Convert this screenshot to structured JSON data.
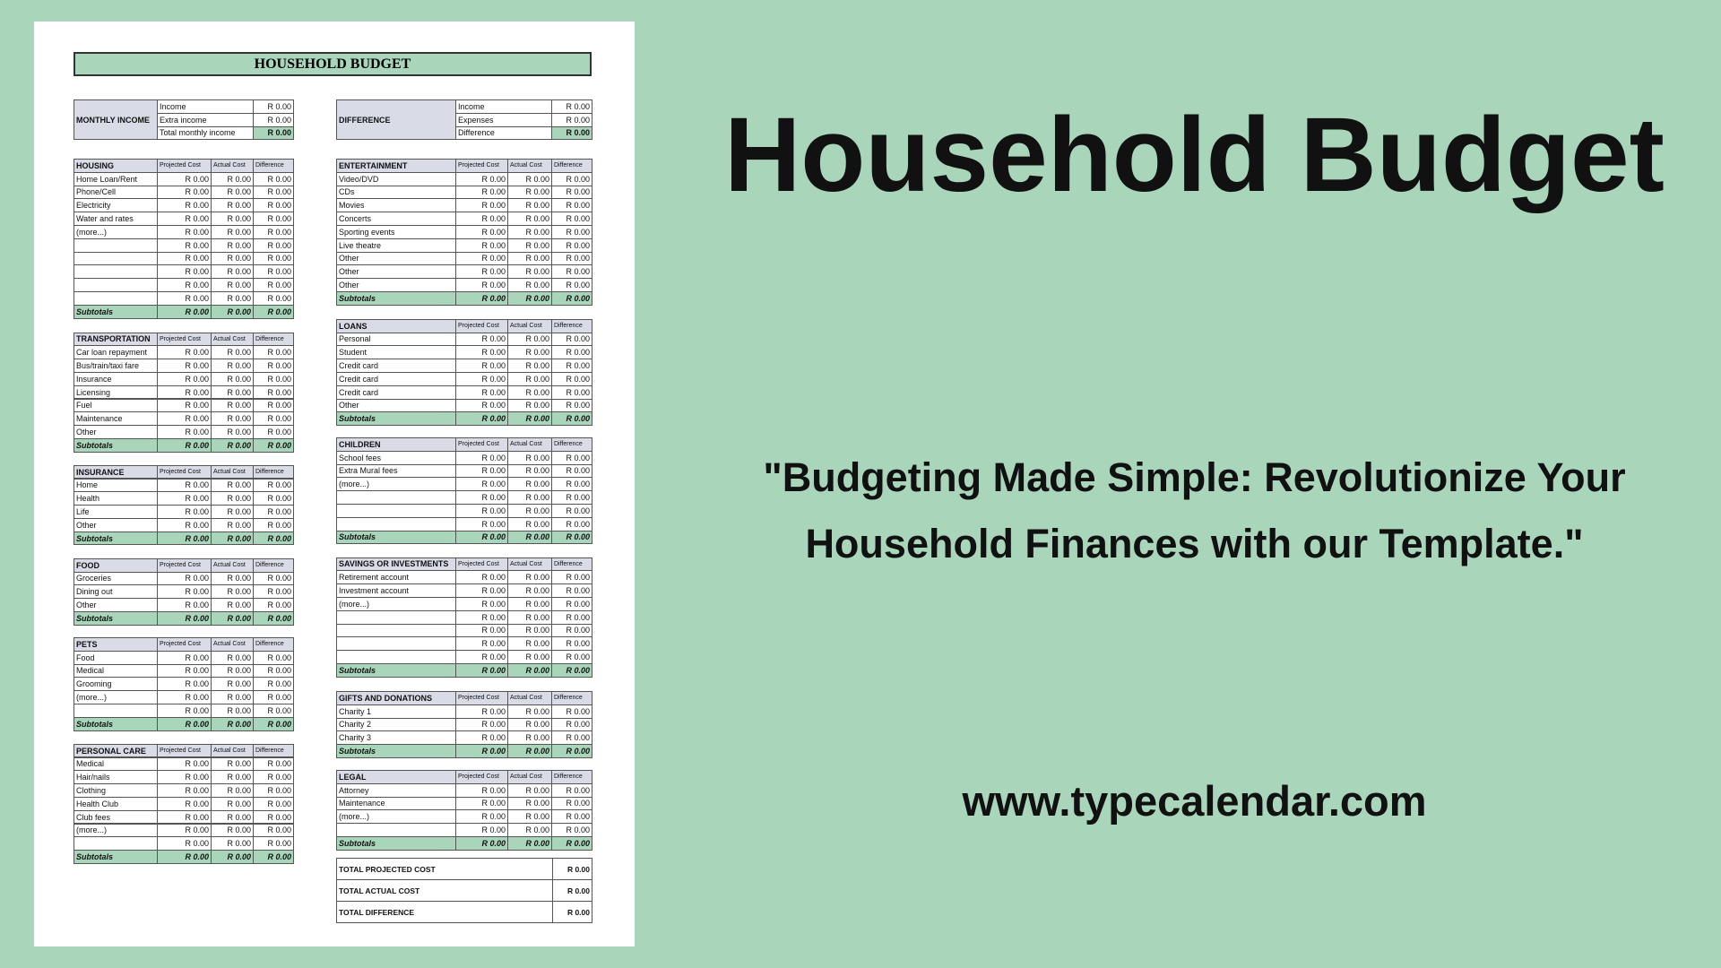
{
  "header": {
    "title": "Household Budget",
    "tagline": "\"Budgeting Made Simple: Revolutionize Your Household Finances with our Template.\"",
    "url": "www.typecalendar.com"
  },
  "document": {
    "title": "HOUSEHOLD BUDGET",
    "income": {
      "label": "MONTHLY INCOME",
      "rows": [
        [
          "Income",
          "R 0.00"
        ],
        [
          "Extra income",
          "R 0.00"
        ],
        [
          "Total monthly income",
          "R 0.00"
        ]
      ]
    },
    "difference": {
      "label": "DIFFERENCE",
      "rows": [
        [
          "Income",
          "R 0.00"
        ],
        [
          "Expenses",
          "R 0.00"
        ],
        [
          "Difference",
          "R 0.00"
        ]
      ]
    },
    "sections": [
      {
        "title": "HOUSING",
        "columns": [
          "Projected Cost",
          "Actual Cost",
          "Difference"
        ],
        "rows": [
          [
            "Home Loan/Rent",
            "R 0.00",
            "R 0.00",
            "R 0.00"
          ],
          [
            "Phone/Cell",
            "R 0.00",
            "R 0.00",
            "R 0.00"
          ],
          [
            "Electricity",
            "R 0.00",
            "R 0.00",
            "R 0.00"
          ],
          [
            "Water and rates",
            "R 0.00",
            "R 0.00",
            "R 0.00"
          ],
          [
            "(more...)",
            "R 0.00",
            "R 0.00",
            "R 0.00"
          ],
          [
            null,
            "R 0.00",
            "R 0.00",
            "R 0.00"
          ],
          [
            null,
            "R 0.00",
            "R 0.00",
            "R 0.00"
          ],
          [
            null,
            "R 0.00",
            "R 0.00",
            "R 0.00"
          ],
          [
            null,
            "R 0.00",
            "R 0.00",
            "R 0.00"
          ],
          [
            null,
            "R 0.00",
            "R 0.00",
            "R 0.00"
          ]
        ],
        "subtotal": [
          "Subtotals",
          "R 0.00",
          "R 0.00",
          "R 0.00"
        ]
      },
      {
        "title": "TRANSPORTATION",
        "columns": [
          "Projected Cost",
          "Actual Cost",
          "Difference"
        ],
        "rows": [
          [
            "Car loan repayment",
            "R 0.00",
            "R 0.00",
            "R 0.00"
          ],
          [
            "Bus/train/taxi fare",
            "R 0.00",
            "R 0.00",
            "R 0.00"
          ],
          [
            "Insurance",
            "R 0.00",
            "R 0.00",
            "R 0.00"
          ],
          [
            "Licensing",
            "R 0.00",
            "R 0.00",
            "R 0.00"
          ],
          [
            "Fuel",
            "R 0.00",
            "R 0.00",
            "R 0.00"
          ],
          [
            "Maintenance",
            "R 0.00",
            "R 0.00",
            "R 0.00"
          ],
          [
            "Other",
            "R 0.00",
            "R 0.00",
            "R 0.00"
          ]
        ],
        "subtotal": [
          "Subtotals",
          "R 0.00",
          "R 0.00",
          "R 0.00"
        ]
      },
      {
        "title": "INSURANCE",
        "columns": [
          "Projected Cost",
          "Actual Cost",
          "Difference"
        ],
        "rows": [
          [
            "Home",
            "R 0.00",
            "R 0.00",
            "R 0.00"
          ],
          [
            "Health",
            "R 0.00",
            "R 0.00",
            "R 0.00"
          ],
          [
            "Life",
            "R 0.00",
            "R 0.00",
            "R 0.00"
          ],
          [
            "Other",
            "R 0.00",
            "R 0.00",
            "R 0.00"
          ]
        ],
        "subtotal": [
          "Subtotals",
          "R 0.00",
          "R 0.00",
          "R 0.00"
        ]
      },
      {
        "title": "FOOD",
        "columns": [
          "Projected Cost",
          "Actual Cost",
          "Difference"
        ],
        "rows": [
          [
            "Groceries",
            "R 0.00",
            "R 0.00",
            "R 0.00"
          ],
          [
            "Dining out",
            "R 0.00",
            "R 0.00",
            "R 0.00"
          ],
          [
            "Other",
            "R 0.00",
            "R 0.00",
            "R 0.00"
          ]
        ],
        "subtotal": [
          "Subtotals",
          "R 0.00",
          "R 0.00",
          "R 0.00"
        ]
      },
      {
        "title": "PETS",
        "columns": [
          "Projected Cost",
          "Actual Cost",
          "Difference"
        ],
        "rows": [
          [
            "Food",
            "R 0.00",
            "R 0.00",
            "R 0.00"
          ],
          [
            "Medical",
            "R 0.00",
            "R 0.00",
            "R 0.00"
          ],
          [
            "Grooming",
            "R 0.00",
            "R 0.00",
            "R 0.00"
          ],
          [
            "(more...)",
            "R 0.00",
            "R 0.00",
            "R 0.00"
          ],
          [
            null,
            "R 0.00",
            "R 0.00",
            "R 0.00"
          ]
        ],
        "subtotal": [
          "Subtotals",
          "R 0.00",
          "R 0.00",
          "R 0.00"
        ]
      },
      {
        "title": "PERSONAL CARE",
        "columns": [
          "Projected Cost",
          "Actual Cost",
          "Difference"
        ],
        "rows": [
          [
            "Medical",
            "R 0.00",
            "R 0.00",
            "R 0.00"
          ],
          [
            "Hair/nails",
            "R 0.00",
            "R 0.00",
            "R 0.00"
          ],
          [
            "Clothing",
            "R 0.00",
            "R 0.00",
            "R 0.00"
          ],
          [
            "Health Club",
            "R 0.00",
            "R 0.00",
            "R 0.00"
          ],
          [
            "Club fees",
            "R 0.00",
            "R 0.00",
            "R 0.00"
          ],
          [
            "(more...)",
            "R 0.00",
            "R 0.00",
            "R 0.00"
          ],
          [
            null,
            "R 0.00",
            "R 0.00",
            "R 0.00"
          ]
        ],
        "subtotal": [
          "Subtotals",
          "R 0.00",
          "R 0.00",
          "R 0.00"
        ]
      },
      {
        "title": "ENTERTAINMENT",
        "columns": [
          "Projected Cost",
          "Actual Cost",
          "Difference"
        ],
        "rows": [
          [
            "Video/DVD",
            "R 0.00",
            "R 0.00",
            "R 0.00"
          ],
          [
            "CDs",
            "R 0.00",
            "R 0.00",
            "R 0.00"
          ],
          [
            "Movies",
            "R 0.00",
            "R 0.00",
            "R 0.00"
          ],
          [
            "Concerts",
            "R 0.00",
            "R 0.00",
            "R 0.00"
          ],
          [
            "Sporting events",
            "R 0.00",
            "R 0.00",
            "R 0.00"
          ],
          [
            "Live theatre",
            "R 0.00",
            "R 0.00",
            "R 0.00"
          ],
          [
            "Other",
            "R 0.00",
            "R 0.00",
            "R 0.00"
          ],
          [
            "Other",
            "R 0.00",
            "R 0.00",
            "R 0.00"
          ],
          [
            "Other",
            "R 0.00",
            "R 0.00",
            "R 0.00"
          ]
        ],
        "subtotal": [
          "Subtotals",
          "R 0.00",
          "R 0.00",
          "R 0.00"
        ]
      },
      {
        "title": "LOANS",
        "columns": [
          "Projected Cost",
          "Actual Cost",
          "Difference"
        ],
        "rows": [
          [
            "Personal",
            "R 0.00",
            "R 0.00",
            "R 0.00"
          ],
          [
            "Student",
            "R 0.00",
            "R 0.00",
            "R 0.00"
          ],
          [
            "Credit card",
            "R 0.00",
            "R 0.00",
            "R 0.00"
          ],
          [
            "Credit card",
            "R 0.00",
            "R 0.00",
            "R 0.00"
          ],
          [
            "Credit card",
            "R 0.00",
            "R 0.00",
            "R 0.00"
          ],
          [
            "Other",
            "R 0.00",
            "R 0.00",
            "R 0.00"
          ]
        ],
        "subtotal": [
          "Subtotals",
          "R 0.00",
          "R 0.00",
          "R 0.00"
        ]
      },
      {
        "title": "CHILDREN",
        "columns": [
          "Projected Cost",
          "Actual Cost",
          "Difference"
        ],
        "rows": [
          [
            "School fees",
            "R 0.00",
            "R 0.00",
            "R 0.00"
          ],
          [
            "Extra Mural fees",
            "R 0.00",
            "R 0.00",
            "R 0.00"
          ],
          [
            "(more...)",
            "R 0.00",
            "R 0.00",
            "R 0.00"
          ],
          [
            null,
            "R 0.00",
            "R 0.00",
            "R 0.00"
          ],
          [
            null,
            "R 0.00",
            "R 0.00",
            "R 0.00"
          ],
          [
            null,
            "R 0.00",
            "R 0.00",
            "R 0.00"
          ]
        ],
        "subtotal": [
          "Subtotals",
          "R 0.00",
          "R 0.00",
          "R 0.00"
        ]
      },
      {
        "title": "SAVINGS OR INVESTMENTS",
        "columns": [
          "Projected Cost",
          "Actual Cost",
          "Difference"
        ],
        "rows": [
          [
            "Retirement account",
            "R 0.00",
            "R 0.00",
            "R 0.00"
          ],
          [
            "Investment account",
            "R 0.00",
            "R 0.00",
            "R 0.00"
          ],
          [
            "(more...)",
            "R 0.00",
            "R 0.00",
            "R 0.00"
          ],
          [
            null,
            "R 0.00",
            "R 0.00",
            "R 0.00"
          ],
          [
            null,
            "R 0.00",
            "R 0.00",
            "R 0.00"
          ],
          [
            null,
            "R 0.00",
            "R 0.00",
            "R 0.00"
          ],
          [
            null,
            "R 0.00",
            "R 0.00",
            "R 0.00"
          ]
        ],
        "subtotal": [
          "Subtotals",
          "R 0.00",
          "R 0.00",
          "R 0.00"
        ]
      },
      {
        "title": "GIFTS AND DONATIONS",
        "columns": [
          "Projected Cost",
          "Actual Cost",
          "Difference"
        ],
        "rows": [
          [
            "Charity 1",
            "R 0.00",
            "R 0.00",
            "R 0.00"
          ],
          [
            "Charity 2",
            "R 0.00",
            "R 0.00",
            "R 0.00"
          ],
          [
            "Charity 3",
            "R 0.00",
            "R 0.00",
            "R 0.00"
          ]
        ],
        "subtotal": [
          "Subtotals",
          "R 0.00",
          "R 0.00",
          "R 0.00"
        ]
      },
      {
        "title": "LEGAL",
        "columns": [
          "Projected Cost",
          "Actual Cost",
          "Difference"
        ],
        "rows": [
          [
            "Attorney",
            "R 0.00",
            "R 0.00",
            "R 0.00"
          ],
          [
            "Maintenance",
            "R 0.00",
            "R 0.00",
            "R 0.00"
          ],
          [
            "(more...)",
            "R 0.00",
            "R 0.00",
            "R 0.00"
          ],
          [
            null,
            "R 0.00",
            "R 0.00",
            "R 0.00"
          ]
        ],
        "subtotal": [
          "Subtotals",
          "R 0.00",
          "R 0.00",
          "R 0.00"
        ]
      }
    ],
    "totals": [
      [
        "TOTAL PROJECTED COST",
        "R 0.00"
      ],
      [
        "TOTAL ACTUAL COST",
        "R 0.00"
      ],
      [
        "TOTAL DIFFERENCE",
        "R 0.00"
      ]
    ]
  }
}
